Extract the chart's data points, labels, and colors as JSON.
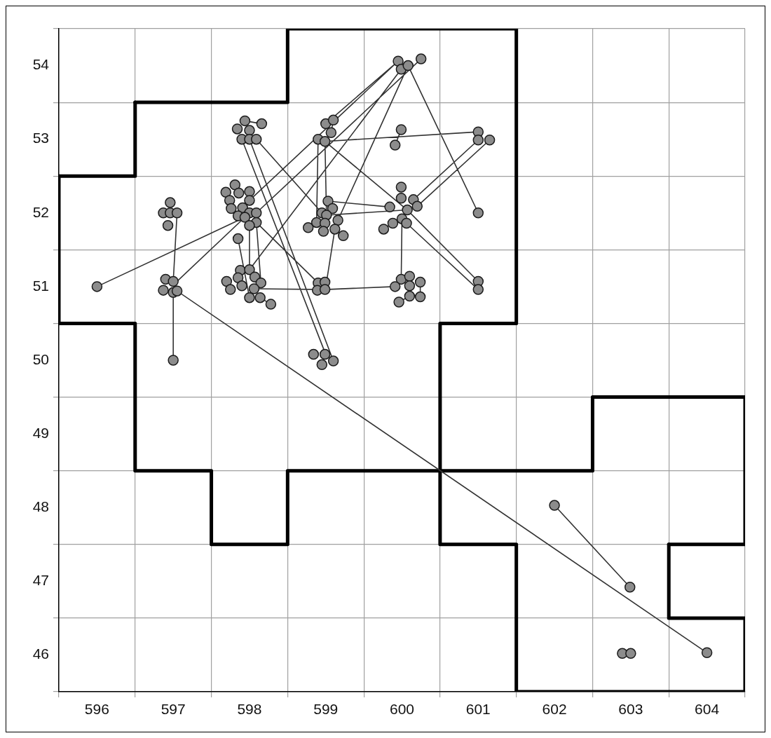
{
  "chart_data": {
    "type": "scatter",
    "xlim": [
      595.5,
      604.5
    ],
    "ylim": [
      45.5,
      54.5
    ],
    "xticks": [
      {
        "value": 595.5,
        "label": null
      },
      596,
      {
        "value": 596.5,
        "label": null
      },
      597,
      {
        "value": 597.5,
        "label": null
      },
      598,
      {
        "value": 598.5,
        "label": null
      },
      599,
      {
        "value": 599.5,
        "label": null
      },
      600,
      {
        "value": 600.5,
        "label": null
      },
      601,
      {
        "value": 601.5,
        "label": null
      },
      602,
      {
        "value": 602.5,
        "label": null
      },
      603,
      {
        "value": 603.5,
        "label": null
      },
      604,
      {
        "value": 604.5,
        "label": null
      }
    ],
    "yticks": [
      {
        "value": 45.5,
        "label": null
      },
      46,
      {
        "value": 46.5,
        "label": null
      },
      47,
      {
        "value": 47.5,
        "label": null
      },
      48,
      {
        "value": 48.5,
        "label": null
      },
      49,
      {
        "value": 49.5,
        "label": null
      },
      50,
      {
        "value": 50.5,
        "label": null
      },
      51,
      {
        "value": 51.5,
        "label": null
      },
      52,
      {
        "value": 52.5,
        "label": null
      },
      53,
      {
        "value": 53.5,
        "label": null
      },
      54,
      {
        "value": 54.5,
        "label": null
      }
    ],
    "grid": true,
    "legend": false,
    "series": [
      {
        "type": "line",
        "color": "#000000",
        "marker": "none",
        "x": [
          598.5,
          601.5,
          null,
          601.5,
          601.5,
          null,
          601.5,
          600.5,
          null,
          600.5,
          600.5,
          null,
          600.5,
          598.5,
          null,
          598.5,
          598.5,
          null,
          598.5,
          597.5,
          null,
          597.5,
          597.5,
          null,
          597.5,
          596.5,
          null,
          596.5,
          596.5,
          null,
          596.5,
          595.5,
          null,
          595.5,
          595.5,
          null,
          596.5,
          598.5,
          null,
          598.5,
          598.5,
          null
        ],
        "values": [
          54.5,
          54.5,
          null,
          54.5,
          50.5,
          null,
          50.5,
          50.5,
          null,
          50.5,
          48.5,
          null,
          48.5,
          48.5,
          null,
          48.5,
          47.5,
          null,
          47.5,
          47.5,
          null,
          47.5,
          48.5,
          null,
          48.5,
          48.5,
          null,
          48.5,
          50.5,
          null,
          50.5,
          50.5,
          null,
          50.5,
          52.5,
          null,
          53.5,
          53.5,
          null,
          53.5,
          54.5,
          null
        ]
      },
      {
        "type": "line",
        "color": "#000000",
        "marker": "none",
        "x": [
          595.5,
          596.5,
          null,
          596.5,
          596.5,
          null,
          603.5,
          604.5,
          null,
          604.5,
          604.5,
          null
        ],
        "values": [
          52.5,
          52.5,
          null,
          52.5,
          53.5,
          null,
          47.5,
          47.5,
          null,
          47.5,
          49.5,
          null
        ]
      },
      {
        "type": "line",
        "color": "#000000",
        "marker": "none",
        "x": [
          600.5,
          600.5,
          null,
          600.5,
          601.5,
          null,
          601.5,
          601.5,
          null,
          601.5,
          604.5,
          null,
          604.5,
          604.5,
          null,
          604.5,
          603.5,
          null,
          603.5,
          603.5,
          null,
          604.5,
          602.5,
          null,
          602.5,
          602.5,
          null,
          602.5,
          600.5,
          null
        ],
        "values": [
          48.5,
          47.5,
          null,
          47.5,
          47.5,
          null,
          47.5,
          45.5,
          null,
          45.5,
          45.5,
          null,
          45.5,
          46.5,
          null,
          46.5,
          46.5,
          null,
          46.5,
          47.5,
          null,
          49.5,
          49.5,
          null,
          49.5,
          48.5,
          null,
          48.5,
          48.5,
          null
        ]
      },
      {
        "type": "line",
        "color": "#333333",
        "marker": "none",
        "x": [
          596.0,
          597.94,
          null,
          597.05,
          597.0,
          null,
          597.0,
          597.0,
          null,
          597.05,
          604.0,
          null,
          597.05,
          598.0,
          null,
          598.0,
          599.95,
          null,
          598.09,
          600.25,
          null,
          597.9,
          599.0,
          null,
          598.0,
          599.1,
          null,
          598.09,
          598.95,
          null,
          598.9,
          598.88,
          null,
          598.99,
          599.01,
          null,
          599.0,
          599.95,
          null,
          597.94,
          598.16,
          null,
          598.99,
          601.0,
          null,
          598.99,
          600.07,
          null,
          599.03,
          599.84,
          null,
          599.01,
          600.07,
          null,
          600.08,
          601.0,
          null,
          599.16,
          600.08,
          null,
          598.0,
          599.99,
          null,
          600.07,
          601.0,
          null,
          600.06,
          601.0,
          null,
          600.15,
          601.0,
          null,
          600.2,
          601.15,
          null,
          599.99,
          599.91,
          null,
          599.07,
          599.1,
          null,
          598.06,
          598.99,
          599.91,
          null,
          599.99,
          600.0,
          null,
          599.01,
          599.12,
          null,
          598.09,
          598.9,
          null,
          598.0,
          598.0,
          null,
          598.09,
          598.15,
          null,
          597.85,
          598.0,
          null,
          598.14,
          598.28,
          null,
          602.0,
          602.99,
          null,
          600.24,
          600.24,
          null,
          599.96,
          600.1,
          null,
          598.77,
          598.88,
          null,
          599.12,
          599.23,
          null,
          599.76,
          599.88,
          null
        ],
        "values": [
          51.0,
          51.94,
          null,
          52.0,
          51.07,
          null,
          50.92,
          50.0,
          null,
          50.94,
          46.03,
          null,
          51.07,
          52.0,
          null,
          52.17,
          54.06,
          null,
          52.0,
          54.09,
          null,
          53.0,
          50.08,
          null,
          53.0,
          49.99,
          null,
          53.0,
          52.0,
          null,
          53.0,
          51.87,
          null,
          52.97,
          51.97,
          null,
          53.21,
          54.06,
          null,
          53.25,
          53.21,
          null,
          52.97,
          53.1,
          null,
          52.97,
          52.04,
          null,
          52.16,
          52.08,
          null,
          51.97,
          52.04,
          null,
          54.0,
          52.0,
          null,
          51.9,
          54.0,
          null,
          51.23,
          53.95,
          null,
          52.04,
          51.07,
          null,
          51.86,
          50.96,
          null,
          52.18,
          52.99,
          null,
          52.09,
          52.99,
          null,
          53.13,
          52.92,
          null,
          53.09,
          53.26,
          null,
          50.97,
          50.96,
          51.0,
          null,
          51.1,
          51.92,
          null,
          51.06,
          51.78,
          null,
          51.87,
          51.05,
          null,
          51.83,
          51.23,
          null,
          51.87,
          51.05,
          null,
          51.65,
          50.85,
          null,
          50.85,
          50.76,
          null,
          48.03,
          46.92,
          null,
          51.06,
          50.86,
          null,
          50.79,
          50.87,
          null,
          51.8,
          51.87,
          null,
          51.78,
          51.69,
          null,
          51.78,
          51.86,
          null
        ]
      },
      {
        "type": "scatter",
        "color": "#8c8c8c",
        "marker": "circle",
        "x": [
          596.0,
          596.96,
          596.87,
          596.96,
          597.05,
          596.93,
          596.9,
          597.0,
          596.87,
          597.0,
          597.05,
          597.0,
          597.94,
          598.16,
          597.84,
          598.0,
          597.9,
          598.0,
          598.09,
          599.0,
          599.1,
          599.07,
          598.9,
          598.99,
          599.99,
          599.91,
          601.0,
          601.0,
          601.15,
          601.0,
          599.95,
          599.99,
          600.08,
          600.25,
          597.81,
          597.69,
          597.86,
          598.0,
          597.74,
          598.0,
          597.76,
          597.91,
          598.0,
          597.85,
          597.94,
          598.09,
          598.09,
          598.0,
          597.85,
          597.88,
          598.0,
          597.7,
          597.85,
          598.07,
          597.9,
          598.15,
          597.75,
          598.06,
          598.0,
          598.14,
          598.28,
          599.03,
          599.09,
          598.95,
          599.01,
          598.88,
          598.99,
          599.16,
          598.77,
          598.97,
          599.12,
          599.23,
          598.9,
          598.99,
          598.89,
          598.99,
          599.99,
          599.99,
          599.84,
          600.07,
          600.15,
          600.2,
          600.0,
          600.06,
          599.88,
          599.76,
          599.99,
          600.1,
          599.91,
          600.1,
          600.24,
          600.24,
          600.1,
          599.96,
          601.0,
          601.0,
          598.84,
          598.99,
          599.1,
          598.95,
          602.0,
          602.99,
          602.89,
          603.0,
          604.0
        ],
        "values": [
          51.0,
          52.14,
          52.0,
          52.0,
          52.0,
          51.83,
          51.1,
          51.07,
          50.95,
          50.92,
          50.94,
          50.0,
          53.25,
          53.21,
          53.14,
          53.12,
          53.0,
          53.0,
          53.0,
          53.21,
          53.26,
          53.09,
          53.0,
          52.97,
          53.13,
          52.92,
          53.1,
          52.99,
          52.99,
          52.0,
          54.06,
          53.95,
          54.0,
          54.09,
          52.38,
          52.28,
          52.27,
          52.29,
          52.17,
          52.17,
          52.06,
          52.07,
          52.0,
          51.96,
          51.94,
          52.0,
          51.87,
          51.83,
          51.65,
          51.22,
          51.23,
          51.07,
          51.12,
          51.13,
          51.01,
          51.05,
          50.96,
          50.97,
          50.85,
          50.85,
          50.76,
          52.16,
          52.06,
          52.0,
          51.97,
          51.87,
          51.86,
          51.9,
          51.8,
          51.75,
          51.78,
          51.69,
          51.05,
          51.06,
          50.95,
          50.96,
          52.35,
          52.2,
          52.08,
          52.04,
          52.18,
          52.09,
          51.92,
          51.86,
          51.86,
          51.78,
          51.1,
          51.14,
          51.0,
          51.01,
          51.06,
          50.86,
          50.87,
          50.79,
          51.07,
          50.96,
          50.08,
          50.08,
          49.99,
          49.94,
          48.03,
          46.92,
          46.02,
          46.02,
          46.03
        ]
      }
    ]
  }
}
